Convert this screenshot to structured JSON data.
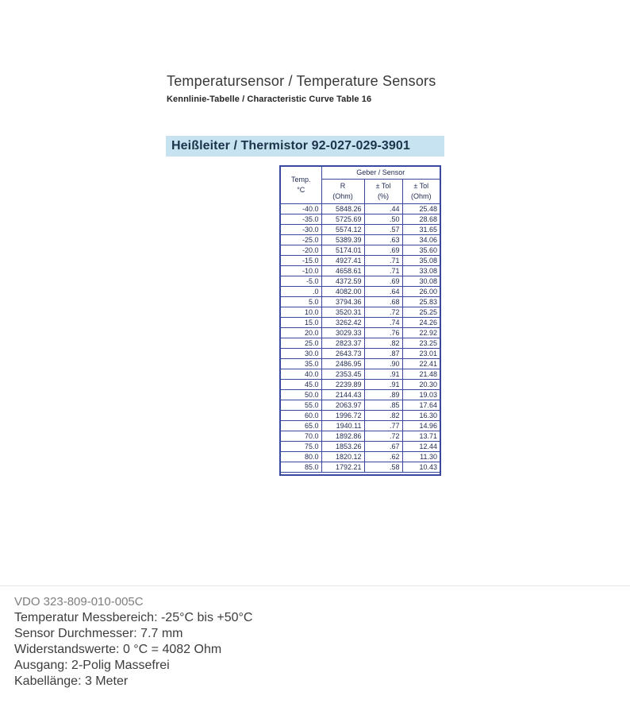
{
  "header": {
    "title": "Temperatursensor / Temperature Sensors",
    "subtitle": "Kennlinie-Tabelle / Characteristic Curve Table 16",
    "section_title": "Heißleiter / Thermistor 92-027-029-3901"
  },
  "colors": {
    "section_highlight_bg": "#c7e3f2",
    "section_highlight_text": "#1d3349",
    "table_border": "#3a49a0",
    "table_text": "#232c54",
    "divider_line": "#e4e4e4",
    "sku_text": "#7e7e7e"
  },
  "table": {
    "group_header": "Geber / Sensor",
    "temp_header": {
      "line1": "Temp.",
      "line2": "°C"
    },
    "columns": [
      {
        "name": "R",
        "unit": "(Ohm)"
      },
      {
        "name": "± Tol",
        "unit": "(%)"
      },
      {
        "name": "± Tol",
        "unit": "(Ohm)"
      }
    ],
    "rows": [
      [
        "-40.0",
        "5848.26",
        ".44",
        "25.48"
      ],
      [
        "-35.0",
        "5725.69",
        ".50",
        "28.68"
      ],
      [
        "-30.0",
        "5574.12",
        ".57",
        "31.65"
      ],
      [
        "-25.0",
        "5389.39",
        ".63",
        "34.06"
      ],
      [
        "-20.0",
        "5174.01",
        ".69",
        "35.60"
      ],
      [
        "-15.0",
        "4927.41",
        ".71",
        "35.08"
      ],
      [
        "-10.0",
        "4658.61",
        ".71",
        "33.08"
      ],
      [
        "-5.0",
        "4372.59",
        ".69",
        "30.08"
      ],
      [
        ".0",
        "4082.00",
        ".64",
        "26.00"
      ],
      [
        "5.0",
        "3794.36",
        ".68",
        "25.83"
      ],
      [
        "10.0",
        "3520.31",
        ".72",
        "25.25"
      ],
      [
        "15.0",
        "3262.42",
        ".74",
        "24.26"
      ],
      [
        "20.0",
        "3029.33",
        ".76",
        "22.92"
      ],
      [
        "25.0",
        "2823.37",
        ".82",
        "23.25"
      ],
      [
        "30.0",
        "2643.73",
        ".87",
        "23.01"
      ],
      [
        "35.0",
        "2486.95",
        ".90",
        "22.41"
      ],
      [
        "40.0",
        "2353.45",
        ".91",
        "21.48"
      ],
      [
        "45.0",
        "2239.89",
        ".91",
        "20.30"
      ],
      [
        "50.0",
        "2144.43",
        ".89",
        "19.03"
      ],
      [
        "55.0",
        "2063.97",
        ".85",
        "17.64"
      ],
      [
        "60.0",
        "1996.72",
        ".82",
        "16.30"
      ],
      [
        "65.0",
        "1940.11",
        ".77",
        "14.96"
      ],
      [
        "70.0",
        "1892.86",
        ".72",
        "13.71"
      ],
      [
        "75.0",
        "1853.26",
        ".67",
        "12.44"
      ],
      [
        "80.0",
        "1820.12",
        ".62",
        "11.30"
      ],
      [
        "85.0",
        "1792.21",
        ".58",
        "10.43"
      ]
    ]
  },
  "footer": {
    "sku": "VDO 323-809-010-005C",
    "lines": [
      "Temperatur Messbereich: -25°C bis +50°C",
      "Sensor Durchmesser: 7.7 mm",
      "Widerstandswerte: 0 °C = 4082 Ohm",
      "Ausgang: 2-Polig Massefrei",
      "Kabellänge: 3 Meter"
    ]
  }
}
